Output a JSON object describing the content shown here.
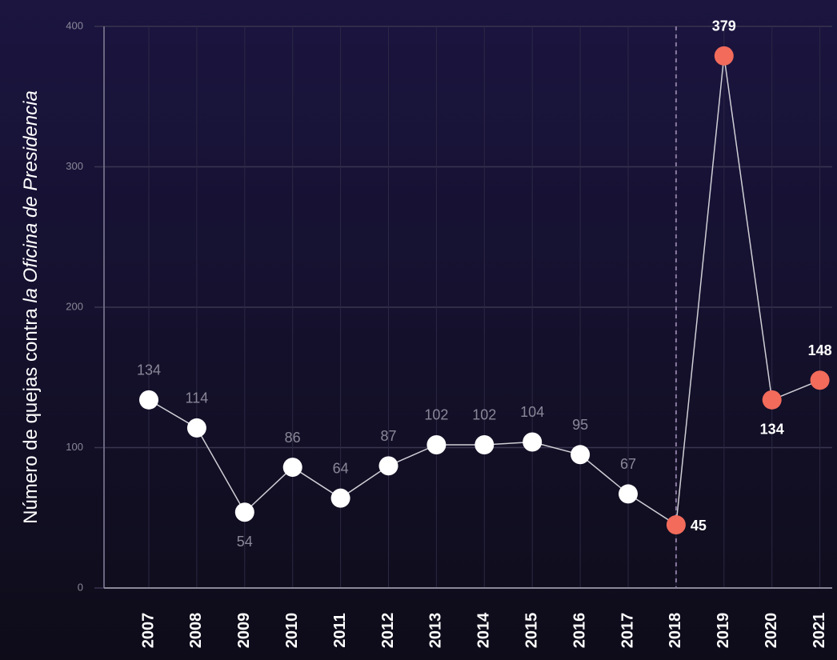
{
  "chart_data": {
    "type": "line",
    "y_label": "Número de quejas contra ",
    "y_label_italic": "la Oficina de Presidencia",
    "categories": [
      "2007",
      "2008",
      "2009",
      "2010",
      "2011",
      "2012",
      "2013",
      "2014",
      "2015",
      "2016",
      "2017",
      "2018",
      "2019",
      "2020",
      "2021"
    ],
    "series": [
      {
        "name": "Quejas",
        "color": "#cfcfd6",
        "values": [
          134,
          114,
          54,
          86,
          64,
          87,
          102,
          102,
          104,
          95,
          67,
          45,
          379,
          134,
          148
        ],
        "point_colors": [
          "#ffffff",
          "#ffffff",
          "#ffffff",
          "#ffffff",
          "#ffffff",
          "#ffffff",
          "#ffffff",
          "#ffffff",
          "#ffffff",
          "#ffffff",
          "#ffffff",
          "#f26b5b",
          "#f26b5b",
          "#f26b5b",
          "#f26b5b"
        ]
      }
    ],
    "ylim": [
      0,
      400
    ],
    "yticks": [
      0,
      100,
      200,
      300,
      400
    ],
    "grid": true,
    "marker_line": "2018"
  }
}
